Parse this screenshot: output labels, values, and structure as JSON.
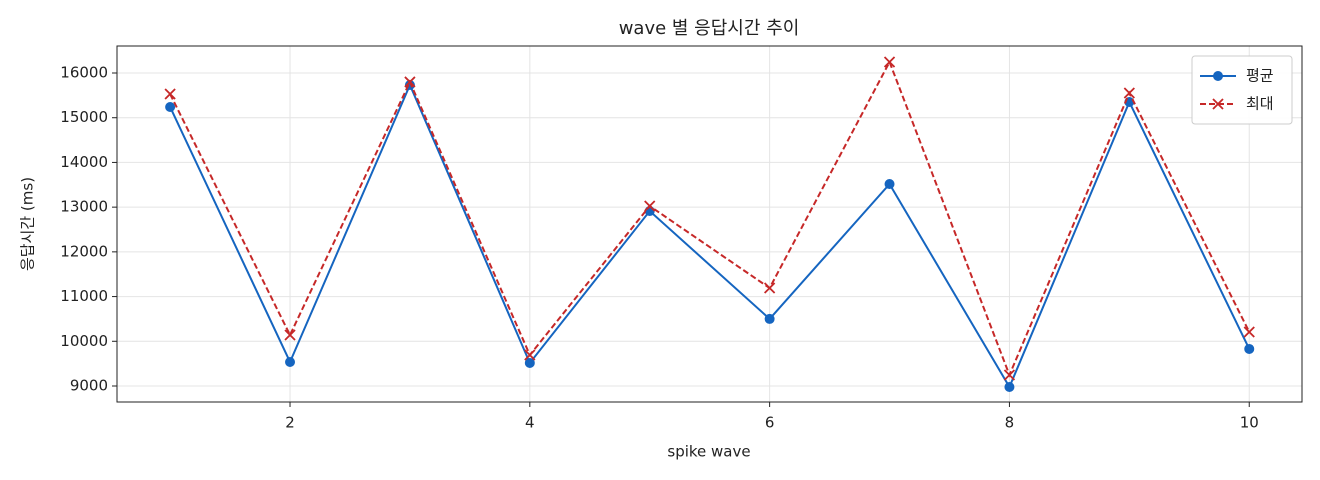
{
  "chart_data": {
    "type": "line",
    "title": "wave 별 응답시간 추이",
    "x_label": "spike wave",
    "y_label": "응답시간 (ms)",
    "x": [
      1,
      2,
      3,
      4,
      5,
      6,
      7,
      8,
      9,
      10
    ],
    "series": [
      {
        "name": "평균",
        "color": "#1565c0",
        "marker": "circle",
        "linestyle": "solid",
        "values": [
          15240,
          9537,
          15732,
          9515,
          12913,
          10500,
          13517,
          8978,
          15351,
          9828
        ]
      },
      {
        "name": "최대",
        "color": "#c62828",
        "marker": "x",
        "linestyle": "dashed",
        "values": [
          15530,
          10140,
          15800,
          9693,
          13025,
          11191,
          16246,
          9246,
          15553,
          10208
        ]
      }
    ],
    "xlim": [
      0.557,
      10.44
    ],
    "xticks": [
      2,
      4,
      6,
      8,
      10
    ],
    "ylim": [
      8642,
      16604
    ],
    "yticks": [
      9000,
      10000,
      11000,
      12000,
      13000,
      14000,
      15000,
      16000
    ],
    "grid": true,
    "legend": "upper right"
  }
}
